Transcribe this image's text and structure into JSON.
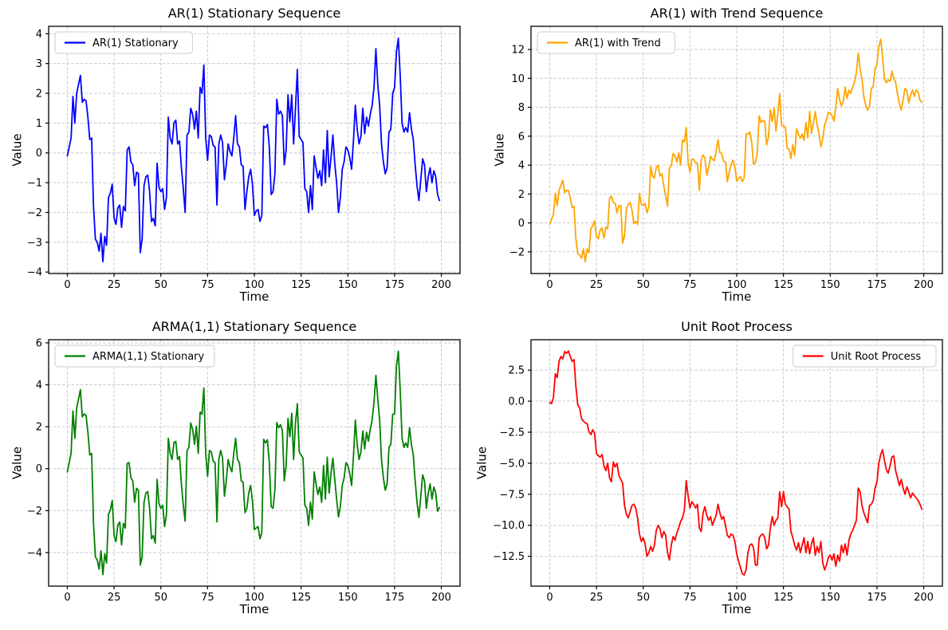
{
  "figure": {
    "background": "#ffffff",
    "grid_color": "#c9c9c9",
    "spine_color": "#000000",
    "text_color": "#000000",
    "legend_border_color": "#cccccc",
    "legend_fill": "#ffffff"
  },
  "chart_data": [
    {
      "type": "line",
      "title": "AR(1) Stationary Sequence",
      "xlabel": "Time",
      "ylabel": "Value",
      "legend": {
        "label": "AR(1) Stationary",
        "position": "upper-left"
      },
      "color": "#0000ff",
      "grid": true,
      "xlim": [
        -10,
        210
      ],
      "ylim": [
        -4.05,
        4.25
      ],
      "xticks": [
        0,
        25,
        50,
        75,
        100,
        125,
        150,
        175,
        200
      ],
      "xtick_labels": [
        "0",
        "25",
        "50",
        "75",
        "100",
        "125",
        "150",
        "175",
        "200"
      ],
      "yticks": [
        -4,
        -3,
        -2,
        -1,
        0,
        1,
        2,
        3,
        4
      ],
      "ytick_labels": [
        "−4",
        "−3",
        "−2",
        "−1",
        "0",
        "1",
        "2",
        "3",
        "4"
      ],
      "x_start": 0,
      "x_step": 1,
      "values": [
        -0.1,
        0.2,
        0.5,
        1.9,
        1.0,
        2.0,
        2.3,
        2.6,
        1.7,
        1.8,
        1.75,
        1.2,
        0.45,
        0.5,
        -1.8,
        -2.9,
        -3.0,
        -3.3,
        -2.7,
        -3.65,
        -2.8,
        -3.1,
        -1.5,
        -1.35,
        -1.05,
        -2.2,
        -2.4,
        -1.85,
        -1.75,
        -2.5,
        -1.8,
        -1.95,
        0.1,
        0.2,
        -0.3,
        -0.4,
        -1.1,
        -0.65,
        -0.7,
        -3.35,
        -2.9,
        -1.1,
        -0.8,
        -0.75,
        -1.3,
        -2.3,
        -2.2,
        -2.45,
        -0.35,
        -1.15,
        -1.3,
        -1.2,
        -1.9,
        -1.5,
        1.2,
        0.5,
        0.3,
        1.0,
        1.1,
        0.3,
        0.4,
        -0.5,
        -1.2,
        -2.0,
        0.6,
        0.7,
        1.5,
        1.3,
        0.8,
        1.4,
        0.5,
        2.2,
        2.0,
        2.95,
        0.5,
        -0.25,
        0.6,
        0.55,
        0.25,
        0.2,
        -1.75,
        0.3,
        0.6,
        0.35,
        -0.9,
        -0.4,
        0.3,
        0.05,
        -0.1,
        0.5,
        1.25,
        0.3,
        0.2,
        -0.4,
        -0.45,
        -1.9,
        -1.3,
        -0.8,
        -0.55,
        -1.05,
        -2.1,
        -1.95,
        -1.9,
        -2.3,
        -2.1,
        0.9,
        0.85,
        0.95,
        0.2,
        -1.4,
        -1.3,
        -0.7,
        1.8,
        1.3,
        1.4,
        1.25,
        -0.4,
        0.1,
        1.95,
        1.05,
        1.95,
        0.3,
        1.5,
        2.8,
        0.55,
        0.45,
        0.35,
        -1.2,
        -1.3,
        -2.0,
        -1.1,
        -1.9,
        -0.1,
        -0.5,
        -0.85,
        -0.6,
        -1.1,
        0.1,
        -1.0,
        0.75,
        -0.8,
        -0.15,
        0.6,
        -0.35,
        -1.0,
        -2.0,
        -1.5,
        -0.55,
        -0.3,
        0.2,
        0.1,
        -0.15,
        -0.55,
        0.4,
        1.6,
        0.8,
        0.3,
        0.55,
        1.5,
        0.65,
        1.2,
        0.9,
        1.3,
        1.6,
        2.2,
        3.5,
        2.3,
        1.6,
        0.3,
        -0.3,
        -0.7,
        -0.5,
        0.7,
        0.8,
        2.0,
        2.2,
        3.4,
        3.85,
        2.6,
        1.0,
        0.7,
        0.85,
        0.7,
        1.35,
        0.8,
        0.45,
        -0.4,
        -1.1,
        -1.6,
        -0.9,
        -0.2,
        -0.4,
        -1.3,
        -0.8,
        -0.5,
        -1.0,
        -0.6,
        -0.8,
        -1.4,
        -1.6
      ]
    },
    {
      "type": "line",
      "title": "AR(1) with Trend Sequence",
      "xlabel": "Time",
      "ylabel": "Value",
      "legend": {
        "label": "AR(1) with Trend",
        "position": "upper-left"
      },
      "color": "#ffa500",
      "grid": true,
      "xlim": [
        -10,
        210
      ],
      "ylim": [
        -3.5,
        13.6
      ],
      "xticks": [
        0,
        25,
        50,
        75,
        100,
        125,
        150,
        175,
        200
      ],
      "xtick_labels": [
        "0",
        "25",
        "50",
        "75",
        "100",
        "125",
        "150",
        "175",
        "200"
      ],
      "yticks": [
        -2,
        0,
        2,
        4,
        6,
        8,
        10,
        12
      ],
      "ytick_labels": [
        "−2",
        "0",
        "2",
        "4",
        "6",
        "8",
        "10",
        "12"
      ],
      "x_start": 0,
      "x_step": 1,
      "values": [
        -0.1,
        0.25,
        0.6,
        2.05,
        1.2,
        2.25,
        2.6,
        2.95,
        2.1,
        2.25,
        2.25,
        1.75,
        1.05,
        1.15,
        -1.1,
        -2.15,
        -2.2,
        -2.45,
        -1.8,
        -2.7,
        -1.8,
        -2.05,
        -0.4,
        -0.2,
        0.15,
        -0.95,
        -1.1,
        -0.5,
        -0.35,
        -1.05,
        -0.3,
        -0.4,
        1.7,
        1.85,
        1.4,
        1.35,
        0.7,
        1.2,
        1.2,
        -1.4,
        -0.9,
        0.95,
        1.3,
        1.4,
        0.9,
        -0.05,
        0.1,
        -0.1,
        2.05,
        1.3,
        1.2,
        1.35,
        0.7,
        1.15,
        3.9,
        3.25,
        3.1,
        3.85,
        4.0,
        3.25,
        3.4,
        2.55,
        1.9,
        1.15,
        3.8,
        3.95,
        4.8,
        4.65,
        4.2,
        4.85,
        4.0,
        5.75,
        5.6,
        6.6,
        4.2,
        3.5,
        4.4,
        4.4,
        4.15,
        4.15,
        2.25,
        4.35,
        4.7,
        4.5,
        3.3,
        3.85,
        4.6,
        4.4,
        4.3,
        4.95,
        5.75,
        4.85,
        4.8,
        4.25,
        4.25,
        2.85,
        3.5,
        4.05,
        4.35,
        3.9,
        2.9,
        3.1,
        3.2,
        2.85,
        3.1,
        6.15,
        6.15,
        6.3,
        5.6,
        4.05,
        4.2,
        4.85,
        7.4,
        6.95,
        7.1,
        7.0,
        5.4,
        5.95,
        7.85,
        7.0,
        7.95,
        6.35,
        7.6,
        8.95,
        6.75,
        6.7,
        6.65,
        5.15,
        5.1,
        4.45,
        5.4,
        4.65,
        6.5,
        6.15,
        5.85,
        6.15,
        5.7,
        6.95,
        5.9,
        7.7,
        6.2,
        6.9,
        7.7,
        6.8,
        6.2,
        5.25,
        5.8,
        6.8,
        7.1,
        7.65,
        7.6,
        7.4,
        7.05,
        8.05,
        9.3,
        8.55,
        8.1,
        8.4,
        9.4,
        8.6,
        9.2,
        8.95,
        9.4,
        9.75,
        10.4,
        11.75,
        10.6,
        9.95,
        8.7,
        8.15,
        7.8,
        8.05,
        9.3,
        9.45,
        10.7,
        10.95,
        12.2,
        12.7,
        11.5,
        9.95,
        9.7,
        9.9,
        9.8,
        10.5,
        10.0,
        9.7,
        8.9,
        8.25,
        7.8,
        8.55,
        9.3,
        9.15,
        8.3,
        8.85,
        9.2,
        8.75,
        9.2,
        9.05,
        8.5,
        8.35
      ]
    },
    {
      "type": "line",
      "title": "ARMA(1,1) Stationary Sequence",
      "xlabel": "Time",
      "ylabel": "Value",
      "legend": {
        "label": "ARMA(1,1) Stationary",
        "position": "upper-left"
      },
      "color": "#008000",
      "grid": true,
      "xlim": [
        -10,
        210
      ],
      "ylim": [
        -5.6,
        6.15
      ],
      "xticks": [
        0,
        25,
        50,
        75,
        100,
        125,
        150,
        175,
        200
      ],
      "xtick_labels": [
        "0",
        "25",
        "50",
        "75",
        "100",
        "125",
        "150",
        "175",
        "200"
      ],
      "yticks": [
        -4,
        -2,
        0,
        2,
        4,
        6
      ],
      "ytick_labels": [
        "−4",
        "−2",
        "0",
        "2",
        "4",
        "6"
      ],
      "x_start": 0,
      "x_step": 1,
      "values": [
        -0.15,
        0.29,
        0.73,
        2.76,
        1.45,
        2.9,
        3.34,
        3.77,
        2.47,
        2.61,
        2.54,
        1.74,
        0.65,
        0.73,
        -2.61,
        -4.21,
        -4.35,
        -4.79,
        -3.92,
        -5.05,
        -4.06,
        -4.5,
        -2.18,
        -1.96,
        -1.52,
        -3.19,
        -3.48,
        -2.68,
        -2.54,
        -3.63,
        -2.61,
        -2.83,
        0.25,
        0.29,
        -0.44,
        -0.58,
        -1.6,
        -0.94,
        -1.02,
        -4.6,
        -4.21,
        -1.6,
        -1.16,
        -1.09,
        -1.89,
        -3.34,
        -3.19,
        -3.55,
        -0.51,
        -1.67,
        -1.89,
        -1.74,
        -2.76,
        -2.18,
        1.45,
        0.73,
        0.44,
        1.25,
        1.3,
        0.44,
        0.58,
        -0.73,
        -1.74,
        -2.5,
        0.87,
        1.02,
        2.18,
        1.89,
        1.16,
        2.03,
        0.73,
        2.7,
        2.6,
        3.85,
        0.73,
        -0.36,
        0.87,
        0.8,
        0.36,
        0.29,
        -2.54,
        0.44,
        0.87,
        0.51,
        -1.31,
        -0.58,
        0.44,
        0.07,
        -0.15,
        0.73,
        1.45,
        0.44,
        0.29,
        -0.58,
        -0.65,
        -2.1,
        -1.89,
        -1.16,
        -0.8,
        -1.52,
        -2.9,
        -2.83,
        -2.76,
        -3.34,
        -3.05,
        1.4,
        1.23,
        1.38,
        0.29,
        -1.8,
        -1.89,
        -1.02,
        2.2,
        1.95,
        2.1,
        1.81,
        -0.58,
        0.15,
        2.4,
        1.52,
        2.65,
        0.44,
        2.18,
        3.1,
        0.8,
        0.65,
        0.51,
        -1.74,
        -1.89,
        -2.7,
        -1.6,
        -2.4,
        -0.15,
        -0.73,
        -1.23,
        -0.87,
        -1.6,
        0.15,
        -1.45,
        0.55,
        -1.16,
        -0.22,
        0.5,
        -0.51,
        -1.45,
        -2.3,
        -1.8,
        -0.8,
        -0.44,
        0.29,
        0.15,
        -0.22,
        -0.8,
        0.58,
        2.32,
        1.16,
        0.44,
        0.8,
        1.8,
        0.94,
        1.74,
        1.31,
        1.89,
        2.32,
        3.19,
        4.45,
        3.34,
        2.32,
        0.44,
        -0.44,
        -1.02,
        -0.73,
        1.02,
        1.16,
        2.6,
        2.6,
        4.9,
        5.6,
        3.75,
        1.45,
        1.02,
        1.23,
        1.02,
        1.95,
        1.15,
        0.65,
        -0.58,
        -1.6,
        -2.32,
        -1.31,
        -0.29,
        -0.58,
        -1.89,
        -1.16,
        -0.73,
        -1.45,
        -0.87,
        -1.16,
        -2.03,
        -1.85
      ]
    },
    {
      "type": "line",
      "title": "Unit Root Process",
      "xlabel": "Time",
      "ylabel": "Value",
      "legend": {
        "label": "Unit Root Process",
        "position": "upper-right"
      },
      "color": "#ff0000",
      "grid": true,
      "xlim": [
        -10,
        210
      ],
      "ylim": [
        -14.9,
        4.95
      ],
      "xticks": [
        0,
        25,
        50,
        75,
        100,
        125,
        150,
        175,
        200
      ],
      "xtick_labels": [
        "0",
        "25",
        "50",
        "75",
        "100",
        "125",
        "150",
        "175",
        "200"
      ],
      "yticks": [
        -12.5,
        -10.0,
        -7.5,
        -5.0,
        -2.5,
        0.0,
        2.5
      ],
      "ytick_labels": [
        "−12.5",
        "−10.0",
        "−7.5",
        "−5.0",
        "−2.5",
        "0.0",
        "2.5"
      ],
      "x_start": 0,
      "x_step": 1,
      "values": [
        -0.1,
        -0.2,
        0.3,
        2.2,
        1.9,
        3.2,
        3.6,
        3.4,
        4.0,
        3.85,
        4.05,
        3.6,
        3.2,
        3.35,
        1.2,
        -0.3,
        -0.55,
        -1.4,
        -1.6,
        -1.75,
        -1.8,
        -2.45,
        -2.7,
        -2.3,
        -2.6,
        -4.2,
        -4.4,
        -4.5,
        -4.3,
        -5.2,
        -5.6,
        -5.0,
        -6.2,
        -6.5,
        -4.9,
        -5.3,
        -5.0,
        -6.0,
        -6.3,
        -6.6,
        -8.4,
        -9.1,
        -9.4,
        -8.9,
        -8.4,
        -8.3,
        -8.6,
        -9.4,
        -10.7,
        -11.3,
        -11.0,
        -11.5,
        -12.5,
        -12.2,
        -11.7,
        -12.1,
        -11.6,
        -10.4,
        -10.0,
        -10.3,
        -11.0,
        -10.5,
        -10.8,
        -12.2,
        -12.8,
        -11.6,
        -10.9,
        -11.2,
        -10.6,
        -10.2,
        -9.7,
        -9.4,
        -8.8,
        -6.4,
        -7.6,
        -8.6,
        -8.1,
        -8.3,
        -8.6,
        -8.3,
        -10.2,
        -10.5,
        -9.0,
        -8.5,
        -9.2,
        -9.6,
        -9.3,
        -10.0,
        -9.6,
        -9.2,
        -8.3,
        -9.0,
        -9.5,
        -9.3,
        -10.0,
        -10.8,
        -11.0,
        -10.7,
        -10.8,
        -11.3,
        -12.3,
        -12.9,
        -13.4,
        -13.9,
        -14.0,
        -13.6,
        -12.2,
        -11.6,
        -11.5,
        -11.8,
        -13.2,
        -13.2,
        -11.0,
        -10.8,
        -10.7,
        -11.0,
        -11.9,
        -11.6,
        -10.2,
        -9.3,
        -10.0,
        -9.6,
        -9.4,
        -7.3,
        -8.5,
        -7.3,
        -8.3,
        -8.5,
        -8.7,
        -10.5,
        -11.0,
        -11.6,
        -12.0,
        -11.4,
        -12.2,
        -11.6,
        -11.0,
        -12.2,
        -11.3,
        -12.3,
        -11.5,
        -11.0,
        -12.4,
        -11.7,
        -12.2,
        -11.3,
        -13.0,
        -13.6,
        -13.2,
        -12.6,
        -12.4,
        -12.8,
        -12.3,
        -13.3,
        -12.4,
        -12.9,
        -11.6,
        -12.2,
        -11.5,
        -12.4,
        -11.2,
        -10.7,
        -10.4,
        -10.0,
        -9.6,
        -7.0,
        -7.3,
        -8.4,
        -9.0,
        -9.4,
        -9.8,
        -8.4,
        -8.3,
        -8.0,
        -7.0,
        -6.5,
        -5.0,
        -4.3,
        -3.9,
        -4.8,
        -5.5,
        -5.8,
        -5.2,
        -4.5,
        -4.4,
        -5.6,
        -6.2,
        -6.8,
        -6.3,
        -7.0,
        -7.5,
        -6.9,
        -7.3,
        -7.8,
        -7.4,
        -7.6,
        -7.8,
        -8.0,
        -8.3,
        -8.7
      ]
    }
  ]
}
